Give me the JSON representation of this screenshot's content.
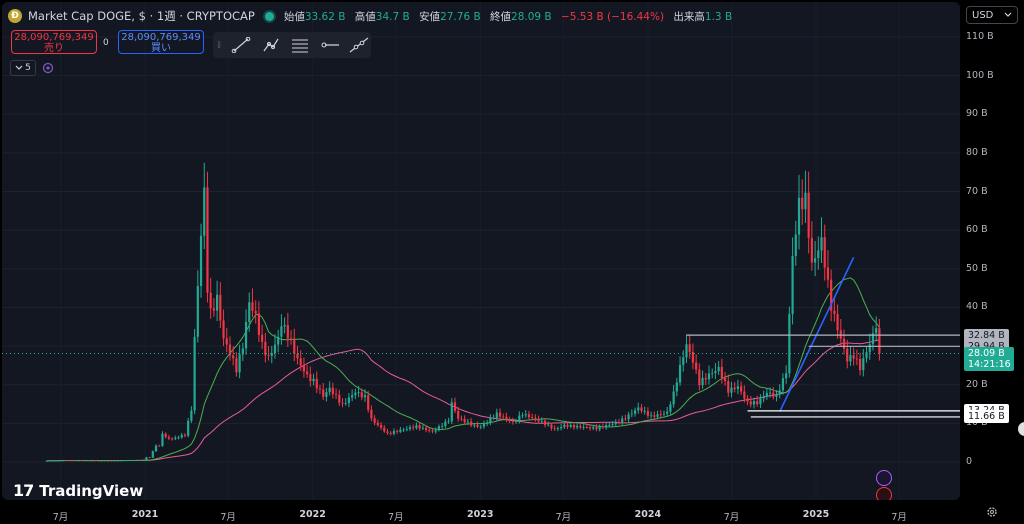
{
  "header": {
    "title": "Market Cap DOGE, $ · 1週 · CRYPTOCAP",
    "ohlc": {
      "open_label": "始値",
      "open": "33.62 B",
      "high_label": "高値",
      "high": "34.7 B",
      "low_label": "安値",
      "low": "27.76 B",
      "close_label": "終値",
      "close": "28.09 B",
      "change": "−5.53 B (−16.44%)",
      "volume_label": "出来高",
      "volume": "1.3 B"
    }
  },
  "trade": {
    "sell_value": "28,090,769,349",
    "sell_label": "売り",
    "spread": "0",
    "buy_value": "28,090,769,349",
    "buy_label": "買い"
  },
  "indicators": {
    "count": "5"
  },
  "currency": "USD",
  "logo_text": "TradingView",
  "colors": {
    "up": "#22ab94",
    "down": "#f23645",
    "ma_short": "#4caf50",
    "ma_long": "#e75b9b",
    "trend": "#2962ff",
    "background": "#131722"
  },
  "icons": [
    "coin-icon",
    "live-dot-icon",
    "line-tool-icon",
    "path-tool-icon",
    "fib-tool-icon",
    "horizontal-ray-icon",
    "extended-line-icon",
    "chevron-down-icon",
    "eye-icon",
    "gear-icon",
    "event-icon"
  ],
  "chart_data": {
    "type": "candlestick",
    "timeframe": "1 week",
    "ylim": [
      0,
      110
    ],
    "y_unit": "B",
    "ytick_labels": [
      "0",
      "10 B",
      "20 B",
      "30 B",
      "40 B",
      "50 B",
      "60 B",
      "70 B",
      "80 B",
      "90 B",
      "100 B",
      "110 B"
    ],
    "x_tick_labels": [
      "7月",
      "2021",
      "7月",
      "2022",
      "7月",
      "2023",
      "7月",
      "2024",
      "7月",
      "2025",
      "7月"
    ],
    "x_tick_dates": [
      "2020-07-01",
      "2021-01-01",
      "2021-07-01",
      "2022-01-01",
      "2022-07-01",
      "2023-01-01",
      "2023-07-01",
      "2024-01-01",
      "2024-07-01",
      "2025-01-01",
      "2025-07-01"
    ],
    "price_levels": [
      {
        "label": "32.84 B",
        "value": 32.84
      },
      {
        "label": "29.94 B",
        "value": 29.94
      },
      {
        "label": "13.24 B",
        "value": 13.24
      },
      {
        "label": "11.66 B",
        "value": 11.66
      }
    ],
    "last_price": {
      "value": 28.09,
      "label": "28.09 B",
      "countdown": "14:21:16"
    },
    "trend_line": {
      "from": [
        "2024-10-14",
        13
      ],
      "to": [
        "2025-03-24",
        53
      ]
    },
    "close_series": [
      [
        "2020-06-01",
        0.32
      ],
      [
        "2020-07-06",
        0.45
      ],
      [
        "2020-08-03",
        0.42
      ],
      [
        "2020-09-07",
        0.4
      ],
      [
        "2020-10-05",
        0.36
      ],
      [
        "2020-11-02",
        0.38
      ],
      [
        "2020-12-07",
        0.55
      ],
      [
        "2020-12-28",
        0.6
      ],
      [
        "2021-01-04",
        1.3
      ],
      [
        "2021-01-11",
        1.2
      ],
      [
        "2021-01-25",
        4.6
      ],
      [
        "2021-02-01",
        4.3
      ],
      [
        "2021-02-08",
        8.0
      ],
      [
        "2021-02-15",
        6.7
      ],
      [
        "2021-03-01",
        6.3
      ],
      [
        "2021-03-29",
        7.5
      ],
      [
        "2021-04-12",
        14.5
      ],
      [
        "2021-04-19",
        34.0
      ],
      [
        "2021-05-03",
        63.0
      ],
      [
        "2021-05-10",
        74.0
      ],
      [
        "2021-05-17",
        48.0
      ],
      [
        "2021-05-24",
        41.0
      ],
      [
        "2021-06-07",
        45.0
      ],
      [
        "2021-06-21",
        34.0
      ],
      [
        "2021-07-05",
        30.0
      ],
      [
        "2021-07-19",
        25.5
      ],
      [
        "2021-08-02",
        32.0
      ],
      [
        "2021-08-16",
        44.0
      ],
      [
        "2021-08-30",
        40.0
      ],
      [
        "2021-09-13",
        32.0
      ],
      [
        "2021-09-27",
        28.5
      ],
      [
        "2021-10-18",
        34.0
      ],
      [
        "2021-10-25",
        38.0
      ],
      [
        "2021-11-08",
        35.0
      ],
      [
        "2021-11-29",
        28.0
      ],
      [
        "2021-12-20",
        23.5
      ],
      [
        "2022-01-03",
        22.0
      ],
      [
        "2022-01-24",
        18.0
      ],
      [
        "2022-02-07",
        20.0
      ],
      [
        "2022-03-07",
        15.5
      ],
      [
        "2022-04-04",
        19.0
      ],
      [
        "2022-04-25",
        17.5
      ],
      [
        "2022-05-09",
        11.5
      ],
      [
        "2022-06-13",
        7.6
      ],
      [
        "2022-07-11",
        8.5
      ],
      [
        "2022-08-15",
        9.5
      ],
      [
        "2022-09-19",
        8.0
      ],
      [
        "2022-10-24",
        11.0
      ],
      [
        "2022-10-31",
        15.5
      ],
      [
        "2022-11-14",
        11.5
      ],
      [
        "2022-12-19",
        9.5
      ],
      [
        "2023-01-02",
        9.2
      ],
      [
        "2023-02-06",
        12.5
      ],
      [
        "2023-03-13",
        10.2
      ],
      [
        "2023-04-03",
        12.4
      ],
      [
        "2023-05-15",
        10.3
      ],
      [
        "2023-06-12",
        8.3
      ],
      [
        "2023-07-03",
        9.3
      ],
      [
        "2023-08-14",
        8.8
      ],
      [
        "2023-09-11",
        8.5
      ],
      [
        "2023-10-23",
        9.8
      ],
      [
        "2023-11-13",
        11.0
      ],
      [
        "2023-12-11",
        13.5
      ],
      [
        "2024-01-08",
        11.3
      ],
      [
        "2024-02-12",
        12.3
      ],
      [
        "2024-02-26",
        17.0
      ],
      [
        "2024-03-11",
        23.5
      ],
      [
        "2024-03-25",
        29.0
      ],
      [
        "2024-04-08",
        25.0
      ],
      [
        "2024-04-22",
        19.5
      ],
      [
        "2024-05-13",
        21.5
      ],
      [
        "2024-06-03",
        23.0
      ],
      [
        "2024-06-24",
        17.5
      ],
      [
        "2024-07-15",
        18.5
      ],
      [
        "2024-08-05",
        14.5
      ],
      [
        "2024-08-26",
        14.5
      ],
      [
        "2024-09-16",
        17.0
      ],
      [
        "2024-10-07",
        16.0
      ],
      [
        "2024-10-28",
        22.0
      ],
      [
        "2024-11-11",
        50.0
      ],
      [
        "2024-11-25",
        63.0
      ],
      [
        "2024-12-09",
        64.0
      ],
      [
        "2024-12-23",
        48.0
      ],
      [
        "2025-01-13",
        54.0
      ],
      [
        "2025-02-03",
        38.0
      ],
      [
        "2025-02-24",
        30.0
      ],
      [
        "2025-03-10",
        25.0
      ],
      [
        "2025-03-24",
        26.0
      ],
      [
        "2025-04-07",
        23.0
      ],
      [
        "2025-04-21",
        27.0
      ],
      [
        "2025-05-05",
        31.0
      ],
      [
        "2025-05-12",
        33.6
      ],
      [
        "2025-05-19",
        28.09
      ]
    ]
  }
}
